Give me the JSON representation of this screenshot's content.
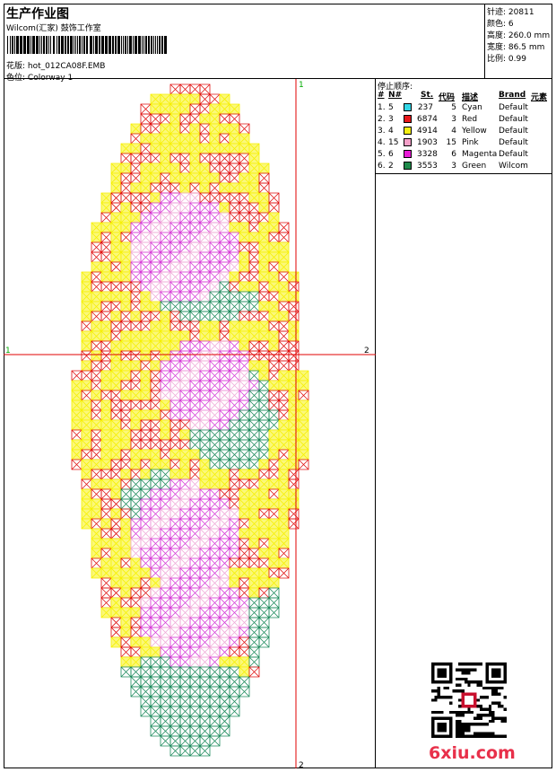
{
  "header": {
    "title": "生产作业图",
    "studio": "Wilcom(汇家) 鼓饰工作室",
    "file_label": "花版:",
    "file_name": "hot_012CA08F.EMB",
    "colorway_label": "色位:",
    "colorway_name": "Colorway 1"
  },
  "stats": [
    {
      "label": "针迹:",
      "value": "20811"
    },
    {
      "label": "颜色:",
      "value": "6"
    },
    {
      "label": "高度:",
      "value": "260.0 mm"
    },
    {
      "label": "宽度:",
      "value": "86.5 mm"
    },
    {
      "label": "比例:",
      "value": "0.99"
    }
  ],
  "stop_sequence": {
    "title": "停止顺序:",
    "columns": [
      "#",
      "N#",
      "St.",
      "代码",
      "描述",
      "Brand",
      "元素"
    ],
    "rows": [
      {
        "idx": "1.",
        "n": "5",
        "st": "237",
        "code": "5",
        "desc": "Cyan",
        "brand": "Default",
        "color": "#33d6e6"
      },
      {
        "idx": "2.",
        "n": "3",
        "st": "6874",
        "code": "3",
        "desc": "Red",
        "brand": "Default",
        "color": "#e8181a"
      },
      {
        "idx": "3.",
        "n": "4",
        "st": "4914",
        "code": "4",
        "desc": "Yellow",
        "brand": "Default",
        "color": "#f4ef14"
      },
      {
        "idx": "4.",
        "n": "15",
        "st": "1903",
        "code": "15",
        "desc": "Pink",
        "brand": "Default",
        "color": "#f4a0c8"
      },
      {
        "idx": "5.",
        "n": "6",
        "st": "3328",
        "code": "6",
        "desc": "Magenta",
        "brand": "Default",
        "color": "#e81cd6"
      },
      {
        "idx": "6.",
        "n": "2",
        "st": "3553",
        "code": "3",
        "desc": "Green",
        "brand": "Wilcom",
        "color": "#1e8a4a"
      }
    ]
  },
  "design": {
    "marker_top": "1",
    "marker_left": "1",
    "marker_right": "2",
    "marker_bottom": "2",
    "grid_colors": {
      "red": "#e01010",
      "yellow": "#f6f000",
      "magenta": "#d63ad8",
      "pink": "#f0a8d8",
      "green": "#1c8a5c"
    }
  },
  "watermark": "6xiu.com"
}
